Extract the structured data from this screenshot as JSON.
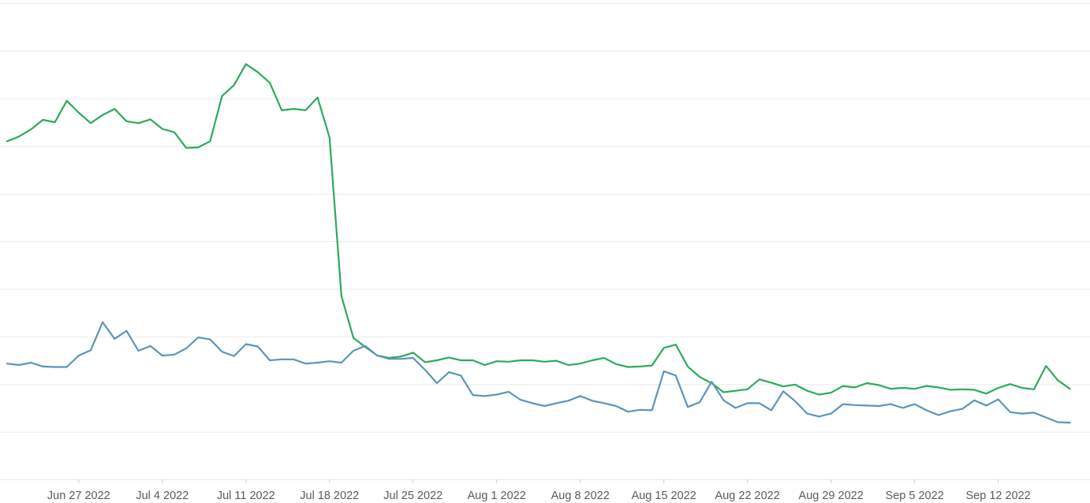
{
  "chart_data": {
    "type": "line",
    "x_start_date": "2022-06-21",
    "x_tick_labels": [
      "Jun 27 2022",
      "Jul 4 2022",
      "Jul 11 2022",
      "Jul 18 2022",
      "Jul 25 2022",
      "Aug 1 2022",
      "Aug 8 2022",
      "Aug 15 2022",
      "Aug 22 2022",
      "Aug 29 2022",
      "Sep 5 2022",
      "Sep 12 2022"
    ],
    "x_tick_dates": [
      "2022-06-27",
      "2022-07-04",
      "2022-07-11",
      "2022-07-18",
      "2022-07-25",
      "2022-08-01",
      "2022-08-08",
      "2022-08-15",
      "2022-08-22",
      "2022-08-29",
      "2022-09-05",
      "2022-09-12"
    ],
    "ylim": [
      0,
      10
    ],
    "grid": true,
    "series": [
      {
        "color": "#2bab5b",
        "values": [
          7.1,
          7.2,
          7.35,
          7.55,
          7.5,
          7.95,
          7.7,
          7.48,
          7.65,
          7.78,
          7.52,
          7.48,
          7.56,
          7.36,
          7.29,
          6.96,
          6.97,
          7.1,
          8.05,
          8.28,
          8.72,
          8.55,
          8.33,
          7.75,
          7.78,
          7.75,
          8.02,
          7.18,
          3.85,
          2.97,
          2.78,
          2.6,
          2.55,
          2.58,
          2.66,
          2.46,
          2.5,
          2.56,
          2.5,
          2.5,
          2.4,
          2.48,
          2.47,
          2.5,
          2.5,
          2.47,
          2.49,
          2.4,
          2.43,
          2.5,
          2.55,
          2.42,
          2.36,
          2.37,
          2.39,
          2.76,
          2.83,
          2.37,
          2.15,
          2.02,
          1.83,
          1.86,
          1.89,
          2.1,
          2.03,
          1.95,
          1.99,
          1.86,
          1.78,
          1.82,
          1.96,
          1.93,
          2.02,
          1.98,
          1.9,
          1.92,
          1.9,
          1.96,
          1.93,
          1.88,
          1.89,
          1.88,
          1.8,
          1.92,
          2.0,
          1.92,
          1.89,
          2.38,
          2.08,
          1.9
        ]
      },
      {
        "color": "#5b95bb",
        "values": [
          2.43,
          2.4,
          2.45,
          2.37,
          2.36,
          2.36,
          2.6,
          2.71,
          3.3,
          2.95,
          3.12,
          2.7,
          2.8,
          2.6,
          2.62,
          2.75,
          2.98,
          2.94,
          2.68,
          2.59,
          2.84,
          2.79,
          2.5,
          2.52,
          2.52,
          2.43,
          2.45,
          2.48,
          2.45,
          2.7,
          2.8,
          2.6,
          2.53,
          2.53,
          2.55,
          2.3,
          2.02,
          2.25,
          2.18,
          1.77,
          1.75,
          1.78,
          1.84,
          1.67,
          1.6,
          1.54,
          1.6,
          1.65,
          1.75,
          1.65,
          1.6,
          1.54,
          1.42,
          1.46,
          1.45,
          2.27,
          2.18,
          1.52,
          1.62,
          2.05,
          1.66,
          1.5,
          1.6,
          1.6,
          1.45,
          1.85,
          1.64,
          1.38,
          1.32,
          1.38,
          1.58,
          1.56,
          1.55,
          1.54,
          1.58,
          1.5,
          1.58,
          1.45,
          1.35,
          1.43,
          1.48,
          1.66,
          1.55,
          1.68,
          1.41,
          1.38,
          1.4,
          1.3,
          1.2,
          1.19
        ]
      }
    ]
  }
}
